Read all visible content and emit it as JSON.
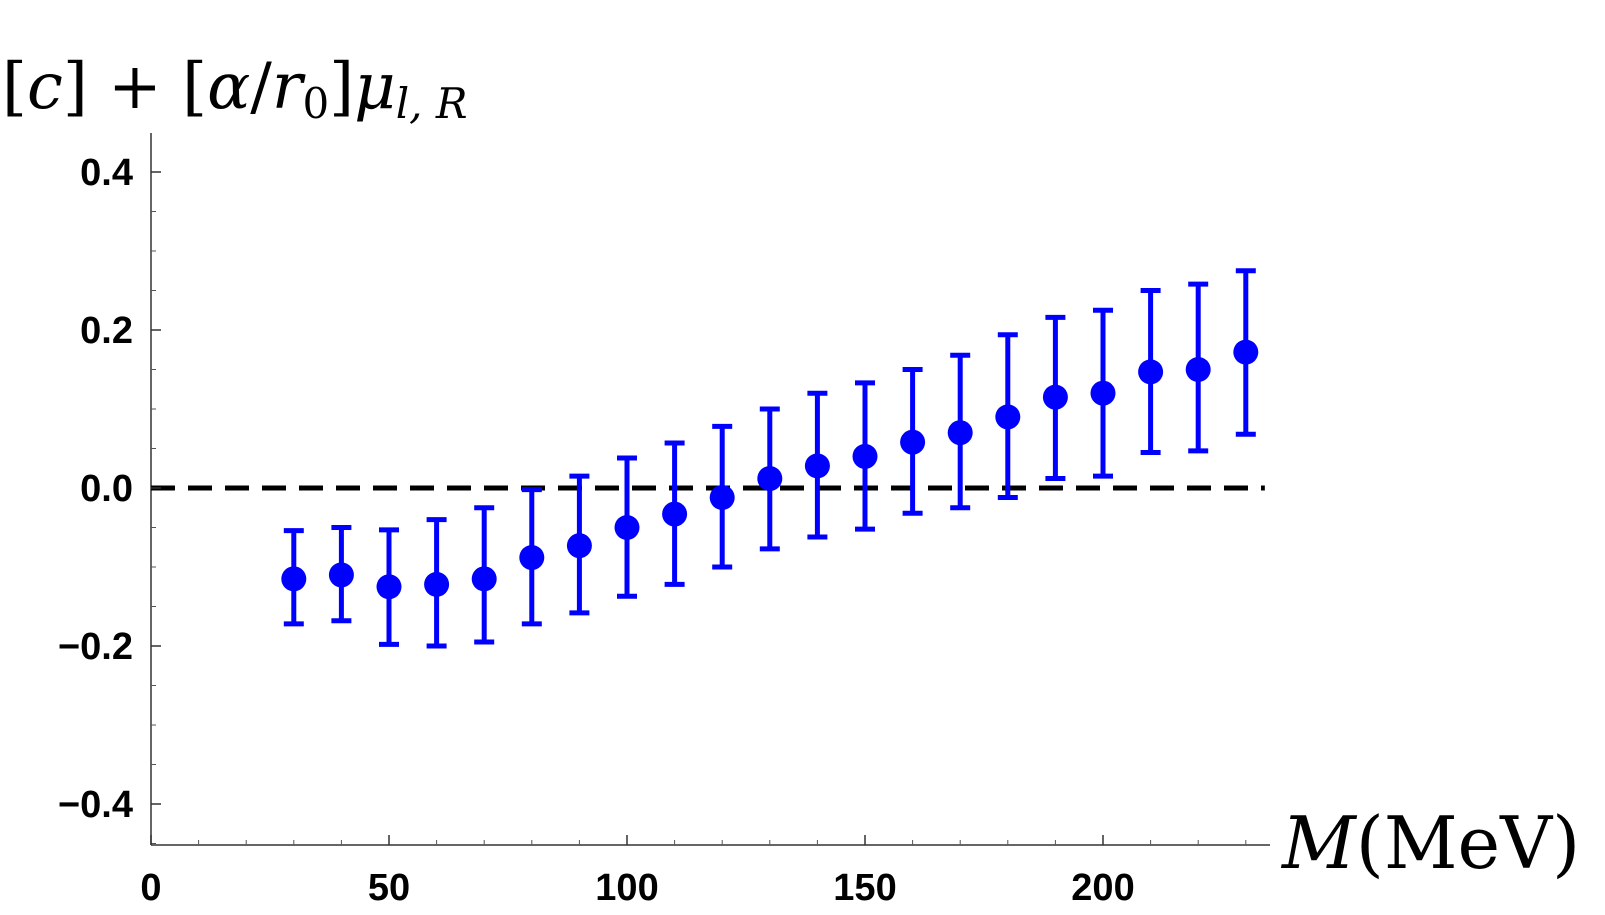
{
  "chart_data": {
    "type": "scatter",
    "ylabel_parts": {
      "c": "c",
      "alpha": "α",
      "r": "r",
      "r_sub": "0",
      "mu": "μ",
      "mu_sub": "l, R"
    },
    "xlabel_parts": {
      "var": "M",
      "unit": "(MeV)"
    },
    "xlim": [
      0,
      235
    ],
    "ylim": [
      -0.45,
      0.45
    ],
    "x_ticks": [
      {
        "value": 0,
        "label": "0"
      },
      {
        "value": 50,
        "label": "50"
      },
      {
        "value": 100,
        "label": "100"
      },
      {
        "value": 150,
        "label": "150"
      },
      {
        "value": 200,
        "label": "200"
      }
    ],
    "y_ticks": [
      {
        "value": 0.4,
        "label": "0.4"
      },
      {
        "value": 0.2,
        "label": "0.2"
      },
      {
        "value": 0.0,
        "label": "0.0"
      },
      {
        "value": -0.2,
        "label": "−0.2"
      },
      {
        "value": -0.4,
        "label": "−0.4"
      }
    ],
    "reference_line": {
      "y": 0,
      "style": "dashed",
      "color": "#000000"
    },
    "series": [
      {
        "color": "#0000ff",
        "x": [
          30,
          40,
          50,
          60,
          70,
          80,
          90,
          100,
          110,
          120,
          130,
          140,
          150,
          160,
          170,
          180,
          190,
          200,
          210,
          220,
          230
        ],
        "y": [
          -0.115,
          -0.11,
          -0.125,
          -0.122,
          -0.115,
          -0.088,
          -0.073,
          -0.05,
          -0.033,
          -0.012,
          0.012,
          0.028,
          0.04,
          0.058,
          0.07,
          0.09,
          0.115,
          0.12,
          0.147,
          0.15,
          0.172
        ],
        "ylow": [
          -0.172,
          -0.168,
          -0.198,
          -0.2,
          -0.195,
          -0.172,
          -0.158,
          -0.137,
          -0.122,
          -0.1,
          -0.077,
          -0.062,
          -0.052,
          -0.032,
          -0.025,
          -0.012,
          0.012,
          0.015,
          0.045,
          0.047,
          0.068
        ],
        "yhigh": [
          -0.054,
          -0.05,
          -0.053,
          -0.04,
          -0.025,
          -0.002,
          0.015,
          0.038,
          0.057,
          0.078,
          0.1,
          0.12,
          0.133,
          0.15,
          0.168,
          0.194,
          0.216,
          0.225,
          0.25,
          0.258,
          0.275
        ]
      }
    ],
    "grid": false,
    "legend": "none"
  }
}
